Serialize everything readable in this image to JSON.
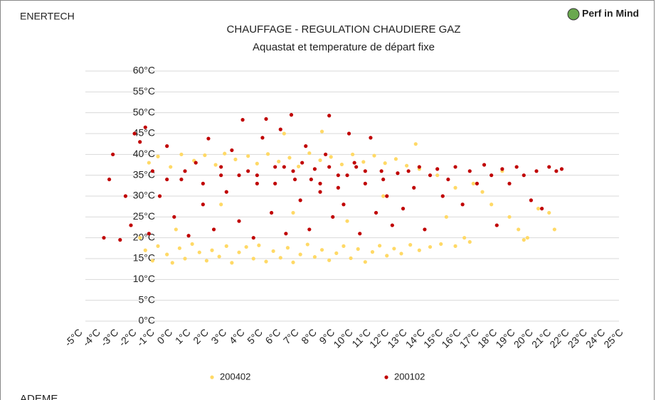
{
  "page": {
    "left_header": "ENERTECH",
    "logo": "Perf in Mind",
    "footer": "ADEME"
  },
  "chart_data": {
    "type": "scatter",
    "title": "CHAUFFAGE - REGULATION CHAUDIERE GAZ",
    "subtitle": "Aquastat et temperature de départ fixe",
    "xlim": [
      -5,
      25
    ],
    "ylim": [
      0,
      60
    ],
    "grid": true,
    "xticks": [
      {
        "value": -5,
        "label": "-5°C"
      },
      {
        "value": -4,
        "label": "-4°C"
      },
      {
        "value": -3,
        "label": "-3°C"
      },
      {
        "value": -2,
        "label": "-2°C"
      },
      {
        "value": -1,
        "label": "-1°C"
      },
      {
        "value": 0,
        "label": "0°C"
      },
      {
        "value": 1,
        "label": "1°C"
      },
      {
        "value": 2,
        "label": "2°C"
      },
      {
        "value": 3,
        "label": "3°C"
      },
      {
        "value": 4,
        "label": "4°C"
      },
      {
        "value": 5,
        "label": "5°C"
      },
      {
        "value": 6,
        "label": "6°C"
      },
      {
        "value": 7,
        "label": "7°C"
      },
      {
        "value": 8,
        "label": "8°C"
      },
      {
        "value": 9,
        "label": "9°C"
      },
      {
        "value": 10,
        "label": "10°C"
      },
      {
        "value": 11,
        "label": "11°C"
      },
      {
        "value": 12,
        "label": "12°C"
      },
      {
        "value": 13,
        "label": "13°C"
      },
      {
        "value": 14,
        "label": "14°C"
      },
      {
        "value": 15,
        "label": "15°C"
      },
      {
        "value": 16,
        "label": "16°C"
      },
      {
        "value": 17,
        "label": "17°C"
      },
      {
        "value": 18,
        "label": "18°C"
      },
      {
        "value": 19,
        "label": "19°C"
      },
      {
        "value": 20,
        "label": "20°C"
      },
      {
        "value": 21,
        "label": "21°C"
      },
      {
        "value": 22,
        "label": "22°C"
      },
      {
        "value": 23,
        "label": "23°C"
      },
      {
        "value": 24,
        "label": "24°C"
      },
      {
        "value": 25,
        "label": "25°C"
      }
    ],
    "yticks": [
      {
        "value": 0,
        "label": "0°C"
      },
      {
        "value": 5,
        "label": "5°C"
      },
      {
        "value": 10,
        "label": "10°C"
      },
      {
        "value": 15,
        "label": "15°C"
      },
      {
        "value": 20,
        "label": "20°C"
      },
      {
        "value": 25,
        "label": "25°C"
      },
      {
        "value": 30,
        "label": "30°C"
      },
      {
        "value": 35,
        "label": "35°C"
      },
      {
        "value": 40,
        "label": "40°C"
      },
      {
        "value": 45,
        "label": "45°C"
      },
      {
        "value": 50,
        "label": "50°C"
      },
      {
        "value": 55,
        "label": "55°C"
      },
      {
        "value": 60,
        "label": "60°C"
      }
    ],
    "series": [
      {
        "name": "200402",
        "color": "#ffd966",
        "x": [
          -1.2,
          -0.8,
          -0.5,
          0,
          0.3,
          0.7,
          1,
          1.4,
          1.8,
          2.2,
          2.5,
          2.9,
          3.3,
          3.6,
          4,
          4.4,
          4.8,
          5.1,
          5.5,
          5.9,
          6.3,
          6.7,
          7,
          7.4,
          7.8,
          8.2,
          8.6,
          9,
          9.4,
          9.8,
          10.2,
          10.6,
          11,
          11.4,
          11.8,
          12.2,
          12.6,
          13,
          13.5,
          14,
          14.6,
          15.2,
          16,
          16.8,
          -1,
          -0.5,
          0.2,
          0.8,
          1.5,
          2.1,
          2.7,
          3.2,
          3.8,
          4.5,
          5,
          5.6,
          6.2,
          6.8,
          7.3,
          7.9,
          8.5,
          9.1,
          9.7,
          10.3,
          10.9,
          11.5,
          12.1,
          12.7,
          13.3,
          14,
          15,
          16,
          17,
          17.5,
          18,
          18.6,
          19,
          19.5,
          20,
          20.6,
          21.2,
          21.5,
          19.8,
          16.5,
          15.5,
          13.8,
          6.5,
          8.6,
          -1.5,
          0.5,
          3,
          7,
          10,
          12
        ],
        "values": [
          17,
          14.5,
          18,
          16,
          14,
          17.5,
          15,
          18.5,
          16.5,
          14.5,
          17,
          15.5,
          18,
          14,
          16.5,
          17.8,
          15,
          18.2,
          14.3,
          16.8,
          15.2,
          17.6,
          14.1,
          16,
          18.4,
          15.4,
          17.1,
          14.6,
          16.3,
          18,
          15.1,
          17.3,
          14.2,
          16.6,
          18.1,
          15.7,
          17.4,
          16.2,
          18.3,
          17,
          17.8,
          18.5,
          18,
          19,
          38,
          39.5,
          37,
          40,
          38.5,
          39.8,
          37.5,
          40.2,
          38.8,
          39.6,
          37.8,
          40.1,
          38.3,
          39.2,
          37.1,
          40.3,
          38.6,
          39.4,
          37.6,
          40,
          38.2,
          39.7,
          37.9,
          38.9,
          37.3,
          36.5,
          35,
          32,
          33,
          31,
          28,
          36,
          25,
          22,
          20,
          27,
          26,
          22,
          19.5,
          20,
          25,
          42.5,
          45,
          45.5,
          20,
          22,
          28,
          26,
          24,
          30
        ]
      },
      {
        "name": "200102",
        "color": "#c00000",
        "x": [
          -3.5,
          -3,
          -3.2,
          -2.6,
          -2.3,
          -2,
          -1.8,
          -1.5,
          -1.2,
          -1,
          -0.8,
          -0.4,
          0,
          0.4,
          0.8,
          1.2,
          1.6,
          2,
          2.3,
          2.6,
          3,
          3.3,
          3.6,
          4,
          4.2,
          4.5,
          4.8,
          5,
          5.3,
          5.5,
          5.8,
          6,
          6.3,
          6.6,
          6.9,
          7.1,
          7.4,
          7.7,
          7.9,
          8.2,
          8.5,
          8.8,
          9,
          9.2,
          9.5,
          9.8,
          10.1,
          10.4,
          10.7,
          11,
          11.3,
          11.6,
          11.9,
          12.2,
          12.5,
          12.8,
          13.1,
          13.4,
          13.7,
          14,
          14.3,
          14.6,
          15,
          15.3,
          15.6,
          16,
          16.4,
          16.8,
          17.2,
          17.6,
          18,
          18.3,
          18.6,
          19,
          19.4,
          19.8,
          20.2,
          20.5,
          20.8,
          21.2,
          21.6,
          21.9,
          5,
          6,
          7,
          8,
          9,
          10,
          11,
          12,
          3,
          2,
          1,
          0,
          7.5,
          8.5,
          6.5,
          9.5,
          4,
          10.5
        ],
        "values": [
          20,
          40,
          34,
          19.5,
          30,
          23,
          45,
          43,
          46.5,
          21,
          36,
          30,
          42,
          25,
          34,
          20.5,
          38,
          28,
          43.8,
          22,
          35,
          31,
          41,
          24,
          48.3,
          36,
          20,
          33,
          44,
          48.5,
          26,
          37,
          46,
          21,
          49.5,
          34,
          29,
          42,
          22,
          36.5,
          31,
          40,
          49.3,
          25,
          35,
          28,
          45,
          38,
          21,
          33,
          44,
          26,
          36,
          30,
          23,
          35.5,
          27,
          36,
          32,
          37,
          22,
          35,
          36.5,
          30,
          34,
          37,
          28,
          36,
          33,
          37.5,
          35,
          23,
          36.5,
          33,
          37,
          35,
          29,
          36,
          27,
          37,
          36,
          36.5,
          35,
          33,
          36,
          34,
          37,
          35,
          36,
          34,
          37,
          33,
          36,
          34,
          38,
          33,
          37,
          32,
          35,
          37
        ]
      }
    ]
  }
}
